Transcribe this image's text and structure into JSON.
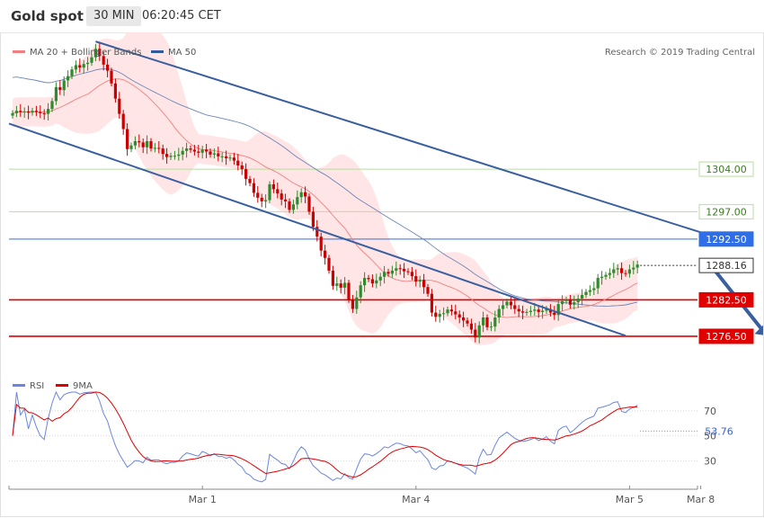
{
  "header": {
    "title": "Gold spot",
    "timeframe": "30 MIN",
    "time": "06:20:45 CET"
  },
  "legend": [
    {
      "label": "MA 20 + Bollinger Bands",
      "color": "#f08080"
    },
    {
      "label": "MA 50",
      "color": "#2f5a9e"
    }
  ],
  "attribution": "Research © 2019 Trading Central",
  "colors": {
    "bull": "#2e8b2e",
    "bear": "#cc0000",
    "channel": "#3a5fa0",
    "ma50": "#6d86b8",
    "ma20": "#f08080",
    "band": "#ffe1e1",
    "resistance": "#b9dca2",
    "pivot": "#2e6fe8",
    "support": "#e00000",
    "rsi": "#6a86e0",
    "rsi_ma": "#e00000"
  },
  "chart_data": [
    {
      "type": "candlestick",
      "title": "Gold spot",
      "ylim": [
        1272.5,
        1326.5
      ],
      "x_labels": [
        {
          "label": "Mar 1",
          "index": 48
        },
        {
          "label": "Mar 4",
          "index": 102
        },
        {
          "label": "Mar 5",
          "index": 156
        },
        {
          "label": "Mar 8",
          "index": 174
        }
      ],
      "closes": [
        1313.2,
        1313.6,
        1313.4,
        1313.5,
        1313.3,
        1313.6,
        1313.4,
        1313.2,
        1313.1,
        1313.9,
        1315.2,
        1317.5,
        1317.0,
        1318.6,
        1319.3,
        1320.4,
        1321.1,
        1320.7,
        1321.3,
        1321.5,
        1322.4,
        1323.8,
        1322.6,
        1321.2,
        1320.2,
        1318.1,
        1315.6,
        1313.1,
        1310.6,
        1307.3,
        1307.9,
        1308.6,
        1308.4,
        1307.6,
        1308.6,
        1307.4,
        1307.5,
        1307.4,
        1306.5,
        1306.0,
        1306.2,
        1306.2,
        1306.4,
        1307.0,
        1307.4,
        1307.2,
        1306.9,
        1306.7,
        1307.2,
        1306.9,
        1306.4,
        1306.6,
        1306.1,
        1306.1,
        1305.8,
        1305.9,
        1305.4,
        1304.6,
        1304.0,
        1302.4,
        1301.7,
        1300.1,
        1299.3,
        1298.7,
        1298.9,
        1301.5,
        1300.7,
        1300.0,
        1299.0,
        1298.7,
        1297.3,
        1298.2,
        1299.4,
        1300.2,
        1299.5,
        1297.0,
        1294.5,
        1292.9,
        1290.6,
        1289.4,
        1287.3,
        1284.8,
        1285.2,
        1284.5,
        1285.3,
        1282.5,
        1281.0,
        1282.9,
        1284.9,
        1286.1,
        1285.9,
        1285.2,
        1285.7,
        1286.3,
        1287.1,
        1286.8,
        1287.3,
        1287.7,
        1287.6,
        1287.2,
        1287.1,
        1286.4,
        1285.5,
        1285.8,
        1284.6,
        1283.5,
        1280.4,
        1279.7,
        1280.2,
        1280.3,
        1280.9,
        1280.6,
        1280.1,
        1279.6,
        1279.1,
        1278.6,
        1277.6,
        1276.3,
        1278.3,
        1279.6,
        1278.0,
        1278.1,
        1279.6,
        1281.0,
        1281.6,
        1282.2,
        1281.6,
        1281.0,
        1280.6,
        1280.4,
        1280.5,
        1280.7,
        1280.9,
        1280.5,
        1280.7,
        1281.0,
        1280.4,
        1280.0,
        1281.8,
        1282.3,
        1282.5,
        1281.7,
        1282.1,
        1282.7,
        1283.3,
        1283.8,
        1284.1,
        1284.4,
        1286.1,
        1286.3,
        1286.6,
        1286.9,
        1287.5,
        1287.7,
        1286.9,
        1286.8,
        1287.5,
        1287.8,
        1288.3
      ],
      "volatility_band": "MA 20 +/- 2 standard deviations",
      "ma_periods": [
        20,
        50
      ],
      "levels": [
        {
          "label": "1304.00",
          "value": 1304.0,
          "kind": "resistance"
        },
        {
          "label": "1297.00",
          "value": 1297.0,
          "kind": "resistance"
        },
        {
          "label": "1292.50",
          "value": 1292.5,
          "kind": "pivot"
        },
        {
          "label": "1288.16",
          "value": 1288.16,
          "kind": "last"
        },
        {
          "label": "1282.50",
          "value": 1282.5,
          "kind": "support"
        },
        {
          "label": "1276.50",
          "value": 1276.5,
          "kind": "support"
        }
      ],
      "channel": {
        "upper": [
          {
            "index": 21,
            "value": 1325.0
          },
          {
            "index": 175,
            "value": 1293.4
          }
        ],
        "lower": [
          {
            "index": 0,
            "value": 1311.5
          },
          {
            "index": 155,
            "value": 1276.6
          }
        ]
      },
      "arrow": {
        "from": {
          "index": 176,
          "value": 1288.6
        },
        "to": {
          "index": 191,
          "value": 1276.6
        }
      }
    },
    {
      "type": "line",
      "legend": [
        {
          "label": "RSI",
          "color": "#6a86e0"
        },
        {
          "label": "9MA",
          "color": "#e00000"
        }
      ],
      "ylim": [
        13,
        85
      ],
      "y_ticks": [
        {
          "label": "70",
          "value": 70
        },
        {
          "label": "50",
          "value": 50
        },
        {
          "label": "30",
          "value": 30
        }
      ],
      "last_value": {
        "label": "53.76",
        "value": 53.76
      },
      "rsi_period": 14,
      "ma_period": 9
    }
  ]
}
